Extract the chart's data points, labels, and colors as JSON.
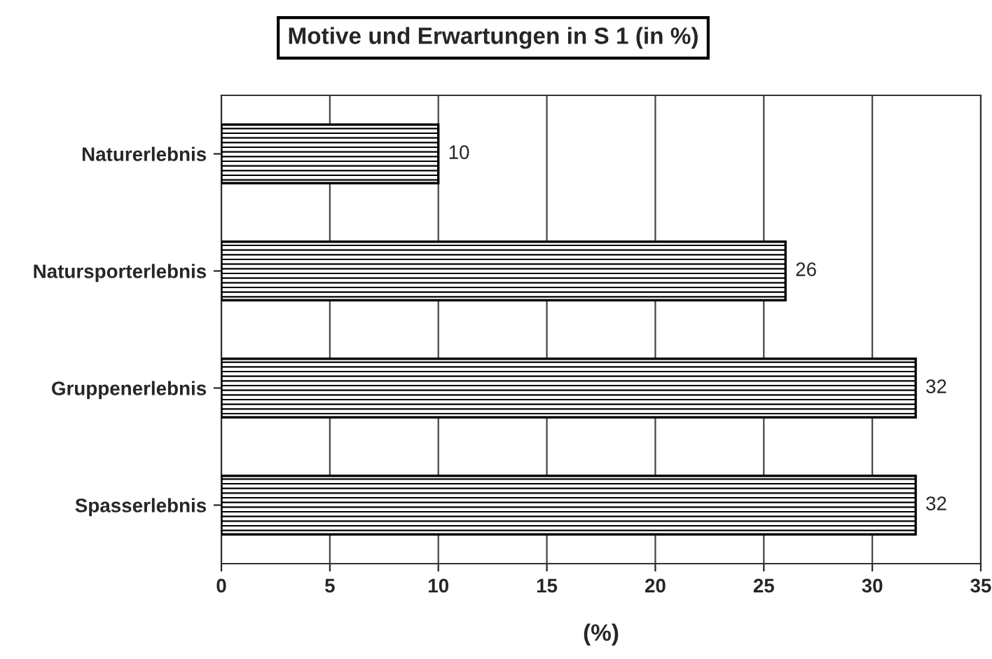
{
  "chart_data": {
    "type": "bar",
    "orientation": "horizontal",
    "title": "Motive und Erwartungen in S 1 (in %)",
    "xlabel": "(%)",
    "categories": [
      "Naturerlebnis",
      "Natursporterlebnis",
      "Gruppenerlebnis",
      "Spasserlebnis"
    ],
    "values": [
      10,
      26,
      32,
      32
    ],
    "color": "#000000",
    "xlim": [
      0,
      35
    ],
    "xticks": [
      0,
      5,
      10,
      15,
      20,
      25,
      30,
      35
    ],
    "grid": "x",
    "data_labels": true
  }
}
